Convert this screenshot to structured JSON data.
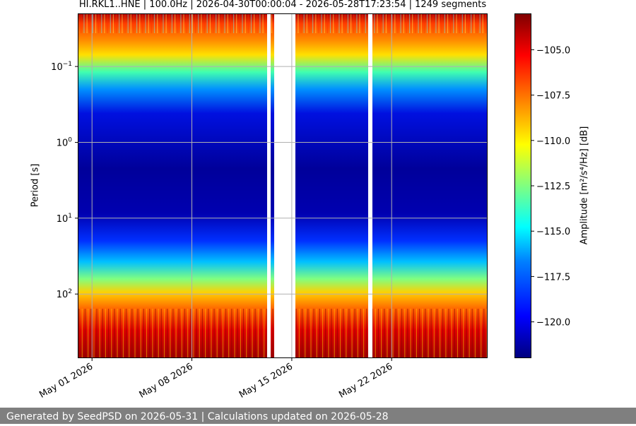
{
  "chart_data": {
    "type": "heatmap",
    "title": "HI.RKL1..HNE | 100.0Hz | 2026-04-30T00:00:04 - 2026-05-28T17:23:54 | 1249 segments",
    "ylabel": "Period [s]",
    "colorbar_label": "Amplitude [m²/s⁴/Hz] [dB]",
    "y_scale": "log",
    "ylim": [
      0.02,
      700
    ],
    "y_ticks": [
      {
        "value": 0.1,
        "base": "10",
        "exp": "−1"
      },
      {
        "value": 1,
        "base": "10",
        "exp": "0"
      },
      {
        "value": 10,
        "base": "10",
        "exp": "1"
      },
      {
        "value": 100,
        "base": "10",
        "exp": "2"
      }
    ],
    "x_ticks": [
      "May 01 2026",
      "May 08 2026",
      "May 15 2026",
      "May 22 2026"
    ],
    "xlim": [
      "2026-04-30",
      "2026-05-28"
    ],
    "gaps": [
      [
        "2026-05-13",
        "2026-05-13"
      ],
      [
        "2026-05-14",
        "2026-05-15"
      ],
      [
        "2026-05-20",
        "2026-05-21"
      ]
    ],
    "colorbar_ticks": [
      "−105.0",
      "−107.5",
      "−110.0",
      "−112.5",
      "−115.0",
      "−117.5",
      "−120.0"
    ],
    "colorbar_range": [
      -122,
      -103
    ],
    "colormap": [
      "#00007f",
      "#0000ff",
      "#0080ff",
      "#00ffff",
      "#80ff80",
      "#ffff00",
      "#ff8000",
      "#ff0000",
      "#800000"
    ],
    "grid": true
  },
  "footer": "Generated by SeedPSD on 2026-05-31 | Calculations updated on 2026-05-28"
}
